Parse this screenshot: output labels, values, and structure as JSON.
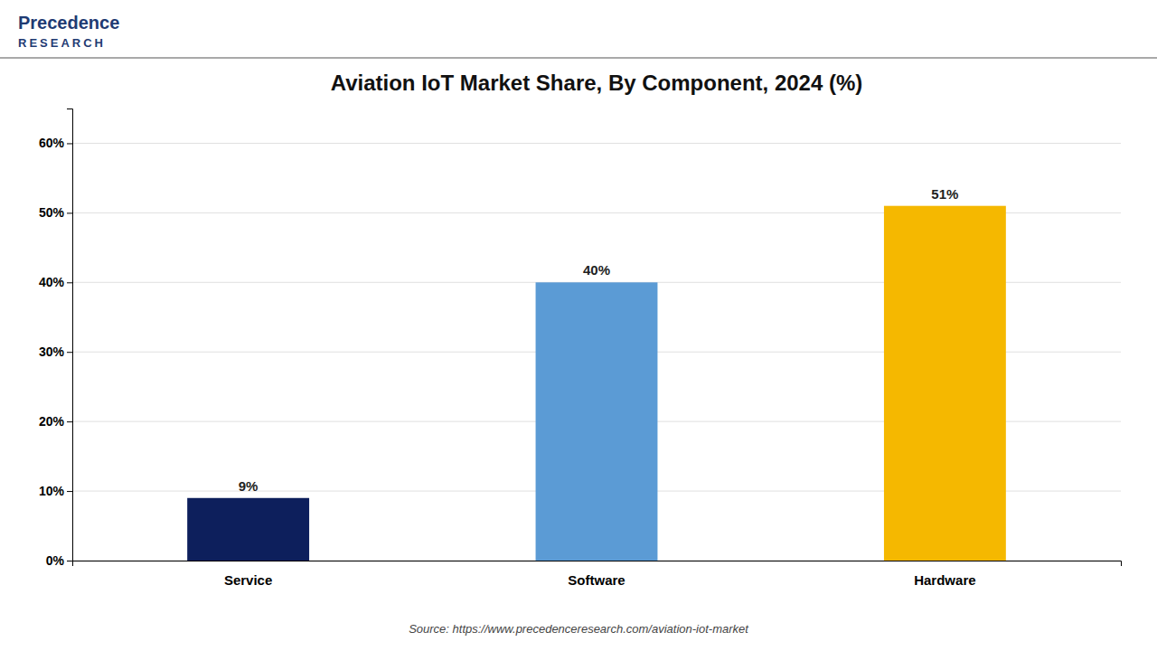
{
  "chart_data": {
    "type": "bar",
    "title": "Aviation IoT Market Share, By Component, 2024 (%)",
    "categories": [
      "Service",
      "Software",
      "Hardware"
    ],
    "values": [
      9,
      40,
      51
    ],
    "value_labels": [
      "9%",
      "40%",
      "51%"
    ],
    "colors": [
      "#0d1f5c",
      "#5b9bd5",
      "#f5b800"
    ],
    "ylim": [
      0,
      65
    ],
    "yticks": [
      {
        "value": 0,
        "label": "0%"
      },
      {
        "value": 10,
        "label": "10%"
      },
      {
        "value": 20,
        "label": "20%"
      },
      {
        "value": 30,
        "label": "30%"
      },
      {
        "value": 40,
        "label": "40%"
      },
      {
        "value": 50,
        "label": "50%"
      },
      {
        "value": 60,
        "label": "60%"
      }
    ],
    "grid": true,
    "data_labels": true,
    "annotations": [
      "Precedence",
      "RESEARCH",
      "Source: https://www.precedenceresearch.com/aviation-iot-market"
    ]
  }
}
